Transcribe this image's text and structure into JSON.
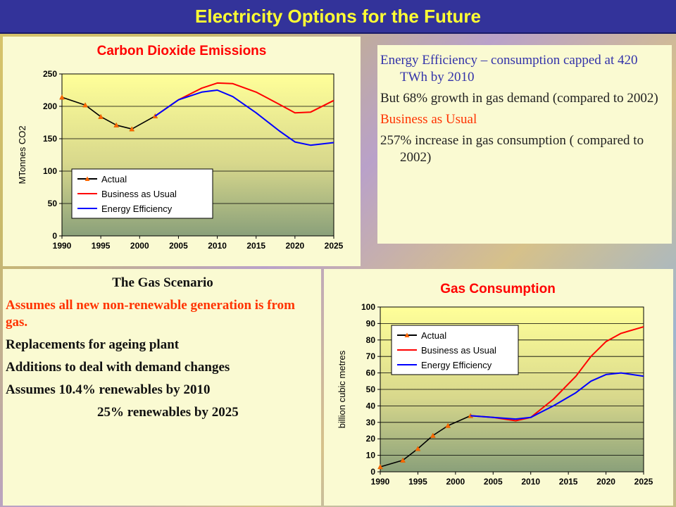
{
  "title": "Electricity Options for the Future",
  "colors": {
    "actual": "#000000",
    "bau": "#ff0000",
    "ee": "#0000ff",
    "marker": "#ff6600",
    "title_text": "#ff0000"
  },
  "info_box": {
    "line1": "Energy Efficiency  – consumption capped at 420 TWh by 2010",
    "line2": "But 68% growth in gas demand (compared to 2002)",
    "line3": "Business as Usual",
    "line4": "257% increase in gas consumption ( compared to 2002)"
  },
  "gas_box": {
    "heading": "The Gas Scenario",
    "line1": "Assumes all new non-renewable generation is from gas.",
    "line2": "Replacements for ageing plant",
    "line3": "Additions to deal with demand changes",
    "line4": "Assumes  10.4% renewables by 2010",
    "line5": "25%   renewables by 2025"
  },
  "chart_data": [
    {
      "type": "line",
      "title": "Carbon Dioxide Emissions",
      "ylabel": "MTonnes CO2",
      "xlabel": "",
      "xlim": [
        1990,
        2025
      ],
      "ylim": [
        0,
        250
      ],
      "xticks": [
        1990,
        1995,
        2000,
        2005,
        2010,
        2015,
        2020,
        2025
      ],
      "yticks": [
        0,
        50,
        100,
        150,
        200,
        250
      ],
      "grid": true,
      "legend": "bottom-left",
      "series": [
        {
          "name": "Actual",
          "x": [
            1990,
            1993,
            1995,
            1997,
            1999,
            2002
          ],
          "y": [
            214,
            202,
            184,
            171,
            165,
            185
          ]
        },
        {
          "name": "Business as Usual",
          "x": [
            2002,
            2005,
            2008,
            2010,
            2012,
            2015,
            2018,
            2020,
            2022,
            2025
          ],
          "y": [
            185,
            210,
            228,
            236,
            235,
            222,
            203,
            190,
            191,
            209
          ]
        },
        {
          "name": "Energy Efficiency",
          "x": [
            2002,
            2005,
            2008,
            2010,
            2012,
            2015,
            2018,
            2020,
            2022,
            2025
          ],
          "y": [
            185,
            210,
            222,
            225,
            215,
            190,
            162,
            145,
            140,
            144
          ]
        }
      ]
    },
    {
      "type": "line",
      "title": "Gas Consumption",
      "ylabel": "billion cubic metres",
      "xlabel": "",
      "xlim": [
        1990,
        2025
      ],
      "ylim": [
        0,
        100
      ],
      "xticks": [
        1990,
        1995,
        2000,
        2005,
        2010,
        2015,
        2020,
        2025
      ],
      "yticks": [
        0,
        10,
        20,
        30,
        40,
        50,
        60,
        70,
        80,
        90,
        100
      ],
      "grid": true,
      "legend": "top-left",
      "series": [
        {
          "name": "Actual",
          "x": [
            1990,
            1993,
            1995,
            1997,
            1999,
            2002
          ],
          "y": [
            3,
            7,
            14,
            22,
            28,
            34
          ]
        },
        {
          "name": "Business as Usual",
          "x": [
            2002,
            2005,
            2008,
            2010,
            2013,
            2016,
            2018,
            2020,
            2022,
            2025
          ],
          "y": [
            34,
            33,
            31,
            33,
            44,
            58,
            70,
            79,
            84,
            88
          ]
        },
        {
          "name": "Energy Efficiency",
          "x": [
            2002,
            2005,
            2008,
            2010,
            2013,
            2016,
            2018,
            2020,
            2022,
            2025
          ],
          "y": [
            34,
            33,
            32,
            33,
            40,
            48,
            55,
            59,
            60,
            58
          ]
        }
      ]
    }
  ]
}
